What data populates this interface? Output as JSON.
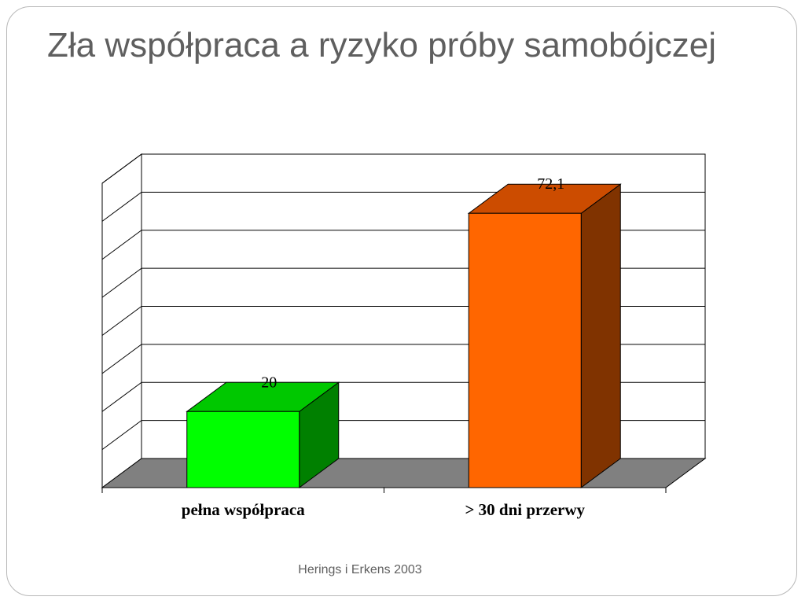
{
  "slide": {
    "title": "Zła współpraca a ryzyko próby samobójczej",
    "source_note": "Herings i Erkens 2003"
  },
  "chart_data": {
    "type": "bar",
    "categories": [
      "pełna współpraca",
      "> 30 dni przerwy"
    ],
    "values": [
      20,
      72.1
    ],
    "value_labels": [
      "20",
      "72,1"
    ],
    "ylim": [
      0,
      80
    ],
    "y_step": 10,
    "grid": true,
    "three_d": true,
    "colors": {
      "bars": [
        {
          "front": "#00ff00",
          "top": "#00c800",
          "side": "#008000"
        },
        {
          "front": "#ff6600",
          "top": "#cc4c00",
          "side": "#803300"
        }
      ],
      "floor": "#808080",
      "walls": "#ffffff",
      "gridlines": "#000000"
    }
  }
}
